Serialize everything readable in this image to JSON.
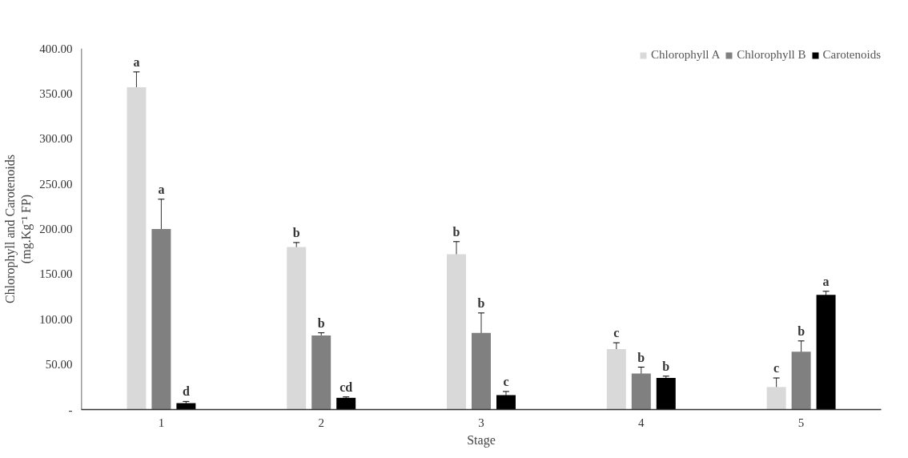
{
  "chart_data": {
    "type": "bar",
    "xlabel": "Stage",
    "ylabel": "Chlorophyll and Carotenoids\n(mg.Kg⁻¹ FP)",
    "categories": [
      "1",
      "2",
      "3",
      "4",
      "5"
    ],
    "series": [
      {
        "name": "Chlorophyll A",
        "color": "#d9d9d9",
        "values": [
          357,
          180,
          172,
          67,
          25
        ],
        "errors": [
          17,
          5,
          14,
          7,
          10
        ]
      },
      {
        "name": "Chlorophyll B",
        "color": "#808080",
        "values": [
          200,
          82,
          85,
          40,
          64
        ],
        "errors": [
          33,
          3,
          22,
          7,
          12
        ]
      },
      {
        "name": "Carotenoids",
        "color": "#000000",
        "values": [
          7,
          13,
          16,
          35,
          127
        ],
        "errors": [
          2,
          1,
          4,
          2,
          4
        ]
      }
    ],
    "ylim": [
      0,
      400
    ],
    "yticks": [
      {
        "value": 0,
        "label": "-"
      },
      {
        "value": 50,
        "label": "50.00"
      },
      {
        "value": 100,
        "label": "100.00"
      },
      {
        "value": 150,
        "label": "150.00"
      },
      {
        "value": 200,
        "label": "200.00"
      },
      {
        "value": 250,
        "label": "250.00"
      },
      {
        "value": 300,
        "label": "300.00"
      },
      {
        "value": 350,
        "label": "350.00"
      },
      {
        "value": 400,
        "label": "400.00"
      }
    ],
    "grid": false,
    "legend": "top right",
    "annotations": [
      "a",
      "a",
      "d",
      "b",
      "b",
      "cd",
      "b",
      "b",
      "c",
      "c",
      "b",
      "b",
      "c",
      "b",
      "a"
    ]
  }
}
